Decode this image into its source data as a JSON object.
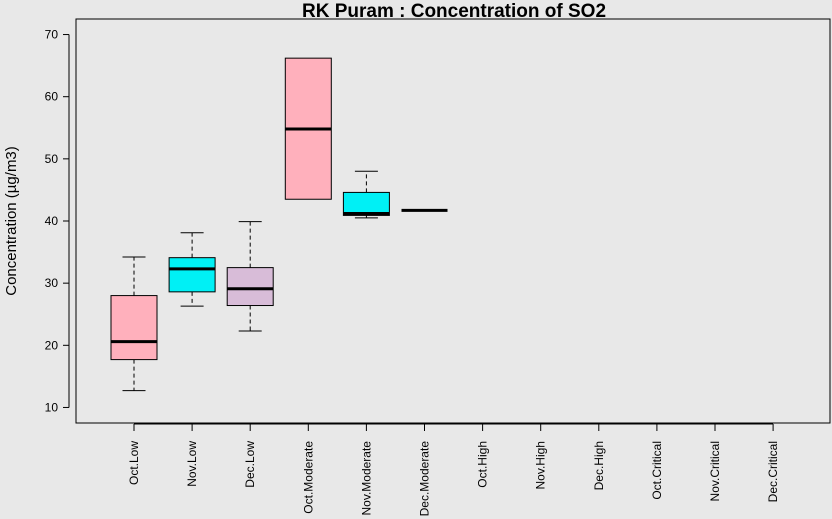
{
  "chart_data": {
    "type": "box",
    "title": "RK Puram : Concentration of SO2",
    "xlabel": "",
    "ylabel": "Concentration (µg/m3)",
    "ylim": [
      7.5,
      72.5
    ],
    "yticks": [
      10,
      20,
      30,
      40,
      50,
      60,
      70
    ],
    "categories": [
      "Oct.Low",
      "Nov.Low",
      "Dec.Low",
      "Oct.Moderate",
      "Nov.Moderate",
      "Dec.Moderate",
      "Oct.High",
      "Nov.High",
      "Dec.High",
      "Oct.Critical",
      "Nov.Critical",
      "Dec.Critical"
    ],
    "boxes": [
      {
        "category": "Oct.Low",
        "min": 12.7,
        "q1": 17.7,
        "median": 20.6,
        "q3": 28.0,
        "max": 34.2,
        "color": "#ffb0bc"
      },
      {
        "category": "Nov.Low",
        "min": 26.3,
        "q1": 28.6,
        "median": 32.3,
        "q3": 34.1,
        "max": 38.1,
        "color": "#00f0f5"
      },
      {
        "category": "Dec.Low",
        "min": 22.3,
        "q1": 26.4,
        "median": 29.1,
        "q3": 32.5,
        "max": 39.9,
        "color": "#d8bcd8"
      },
      {
        "category": "Oct.Moderate",
        "min": 43.5,
        "q1": 43.5,
        "median": 54.8,
        "q3": 66.2,
        "max": 66.2,
        "color": "#ffb0bc"
      },
      {
        "category": "Nov.Moderate",
        "min": 40.5,
        "q1": 40.9,
        "median": 41.2,
        "q3": 44.6,
        "max": 48.0,
        "color": "#00f0f5"
      },
      {
        "category": "Dec.Moderate",
        "min": 41.7,
        "q1": 41.7,
        "median": 41.7,
        "q3": 41.7,
        "max": 41.7,
        "color": "#d8bcd8"
      }
    ],
    "grid": false,
    "legend": "none"
  }
}
